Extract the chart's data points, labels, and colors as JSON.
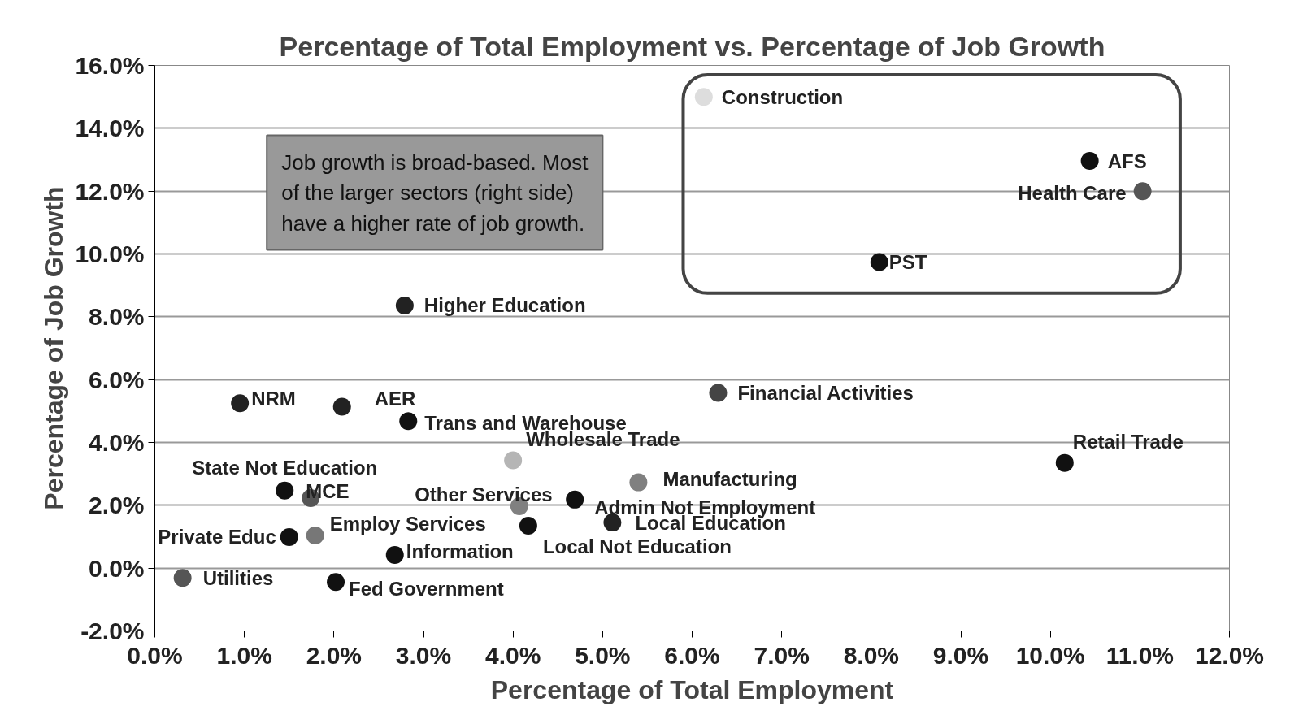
{
  "chart_data": {
    "type": "scatter",
    "title": "Percentage of Total Employment vs. Percentage of Job Growth",
    "xlabel": "Percentage of Total Employment",
    "ylabel": "Percentage of Job Growth",
    "xlim": [
      0,
      12
    ],
    "ylim": [
      -2,
      16
    ],
    "xticks": [
      {
        "value": 0,
        "label": "0.0%"
      },
      {
        "value": 1,
        "label": "1.0%"
      },
      {
        "value": 2,
        "label": "2.0%"
      },
      {
        "value": 3,
        "label": "3.0%"
      },
      {
        "value": 4,
        "label": "4.0%"
      },
      {
        "value": 5,
        "label": "5.0%"
      },
      {
        "value": 6,
        "label": "6.0%"
      },
      {
        "value": 7,
        "label": "7.0%"
      },
      {
        "value": 8,
        "label": "8.0%"
      },
      {
        "value": 9,
        "label": "9.0%"
      },
      {
        "value": 10,
        "label": "10.0%"
      },
      {
        "value": 11,
        "label": "11.0%"
      },
      {
        "value": 12,
        "label": "12.0%"
      }
    ],
    "yticks": [
      {
        "value": -2,
        "label": "-2.0%"
      },
      {
        "value": 0,
        "label": "0.0%"
      },
      {
        "value": 2,
        "label": "2.0%"
      },
      {
        "value": 4,
        "label": "4.0%"
      },
      {
        "value": 6,
        "label": "6.0%"
      },
      {
        "value": 8,
        "label": "8.0%"
      },
      {
        "value": 10,
        "label": "10.0%"
      },
      {
        "value": 12,
        "label": "12.0%"
      },
      {
        "value": 14,
        "label": "14.0%"
      },
      {
        "value": 16,
        "label": "16.0%"
      }
    ],
    "grid": "y",
    "marker": "circle",
    "series": [
      {
        "x": [
          6.13,
          10.44,
          11.03,
          8.09,
          2.79,
          6.29,
          0.95,
          2.09,
          2.83,
          4.0,
          10.16,
          5.4,
          1.45,
          1.74,
          4.07,
          4.69,
          4.17,
          5.11,
          1.79,
          1.5,
          2.68,
          0.31,
          2.02
        ],
        "values": [
          15.0,
          12.96,
          12.0,
          9.74,
          8.36,
          5.58,
          5.25,
          5.14,
          4.68,
          3.43,
          3.35,
          2.73,
          2.47,
          2.23,
          1.97,
          2.18,
          1.35,
          1.45,
          1.04,
          0.99,
          0.42,
          -0.31,
          -0.44
        ],
        "colors": [
          "#dddddd",
          "#111111",
          "#555555",
          "#111111",
          "#222222",
          "#444444",
          "#222222",
          "#222222",
          "#111111",
          "#b5b5b5",
          "#111111",
          "#808080",
          "#111111",
          "#555555",
          "#808080",
          "#111111",
          "#111111",
          "#222222",
          "#777777",
          "#111111",
          "#111111",
          "#555555",
          "#111111"
        ]
      }
    ],
    "annotations": [
      {
        "text": "Construction",
        "x": 6.13,
        "y": 15.0
      },
      {
        "text": "AFS",
        "x": 10.44,
        "y": 12.96
      },
      {
        "text": "Health Care",
        "x": 11.03,
        "y": 12.0
      },
      {
        "text": "PST",
        "x": 8.09,
        "y": 9.74
      },
      {
        "text": "Higher Education",
        "x": 2.79,
        "y": 8.36
      },
      {
        "text": "Financial Activities",
        "x": 6.29,
        "y": 5.58
      },
      {
        "text": "NRM",
        "x": 0.95,
        "y": 5.25
      },
      {
        "text": "AER",
        "x": 2.09,
        "y": 5.14
      },
      {
        "text": "Trans and Warehouse",
        "x": 2.83,
        "y": 4.68
      },
      {
        "text": "Wholesale Trade",
        "x": 4.0,
        "y": 3.43
      },
      {
        "text": "Retail Trade",
        "x": 10.16,
        "y": 3.35
      },
      {
        "text": "Manufacturing",
        "x": 5.4,
        "y": 2.73
      },
      {
        "text": "State Not Education",
        "x": 1.45,
        "y": 2.47
      },
      {
        "text": "MCE",
        "x": 1.74,
        "y": 2.23
      },
      {
        "text": "Other Services",
        "x": 4.07,
        "y": 1.97
      },
      {
        "text": "Admin Not Employment",
        "x": 4.69,
        "y": 2.18
      },
      {
        "text": "Local Not Education",
        "x": 4.17,
        "y": 1.35
      },
      {
        "text": "Local Education",
        "x": 5.11,
        "y": 1.45
      },
      {
        "text": "Employ  Services",
        "x": 1.79,
        "y": 1.04
      },
      {
        "text": "Private Educ",
        "x": 1.5,
        "y": 0.99
      },
      {
        "text": "Information",
        "x": 2.68,
        "y": 0.42
      },
      {
        "text": "Utilities",
        "x": 0.31,
        "y": -0.31
      },
      {
        "text": "Fed Government",
        "x": 2.02,
        "y": -0.44
      },
      "Job growth is broad-based. Most\nof the larger sectors (right side)\nhave a higher rate of job growth."
    ]
  }
}
